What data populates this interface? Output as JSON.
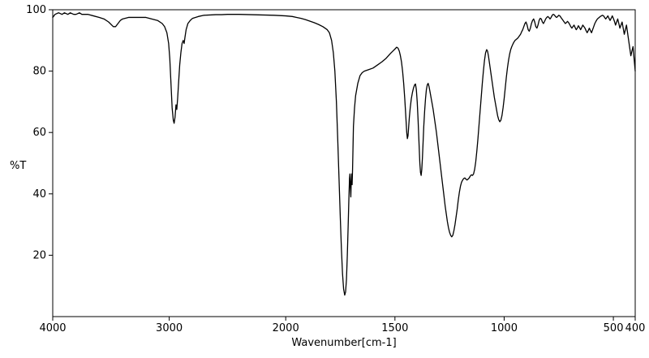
{
  "chart_data": {
    "type": "line",
    "xlabel": "Wavenumber[cm-1]",
    "ylabel": "%T",
    "line_color": "#000000",
    "x_axis": {
      "max": 4000,
      "min": 400,
      "reversed": true,
      "scale_break_at": 2000,
      "break_fraction": 0.4,
      "major_ticks": [
        4000,
        3000,
        2000,
        1500,
        1000,
        500,
        400
      ]
    },
    "y_axis": {
      "min": 0,
      "max": 100,
      "tick_labels": [
        20,
        40,
        60,
        80,
        100
      ]
    },
    "points": [
      [
        4000,
        97.5
      ],
      [
        3980,
        98.5
      ],
      [
        3950,
        99
      ],
      [
        3920,
        98.5
      ],
      [
        3900,
        99
      ],
      [
        3870,
        98.5
      ],
      [
        3850,
        99
      ],
      [
        3820,
        98.5
      ],
      [
        3800,
        98.5
      ],
      [
        3770,
        99
      ],
      [
        3750,
        98.5
      ],
      [
        3700,
        98.5
      ],
      [
        3650,
        98
      ],
      [
        3600,
        97.5
      ],
      [
        3560,
        97
      ],
      [
        3520,
        96
      ],
      [
        3480,
        94.5
      ],
      [
        3460,
        94.5
      ],
      [
        3440,
        95.5
      ],
      [
        3420,
        96.5
      ],
      [
        3400,
        97
      ],
      [
        3350,
        97.5
      ],
      [
        3300,
        97.5
      ],
      [
        3250,
        97.5
      ],
      [
        3200,
        97.5
      ],
      [
        3150,
        97
      ],
      [
        3100,
        96.5
      ],
      [
        3060,
        95.5
      ],
      [
        3040,
        94.5
      ],
      [
        3020,
        92.5
      ],
      [
        3005,
        89
      ],
      [
        2995,
        84
      ],
      [
        2985,
        76
      ],
      [
        2975,
        68
      ],
      [
        2965,
        64
      ],
      [
        2958,
        63
      ],
      [
        2950,
        65
      ],
      [
        2942,
        69
      ],
      [
        2935,
        67.5
      ],
      [
        2928,
        71
      ],
      [
        2920,
        76
      ],
      [
        2910,
        82
      ],
      [
        2900,
        86
      ],
      [
        2890,
        89
      ],
      [
        2880,
        90
      ],
      [
        2872,
        89
      ],
      [
        2865,
        91
      ],
      [
        2855,
        93.5
      ],
      [
        2840,
        95.5
      ],
      [
        2820,
        96.5
      ],
      [
        2800,
        97.2
      ],
      [
        2750,
        97.8
      ],
      [
        2700,
        98.2
      ],
      [
        2650,
        98.3
      ],
      [
        2600,
        98.4
      ],
      [
        2550,
        98.4
      ],
      [
        2500,
        98.5
      ],
      [
        2400,
        98.5
      ],
      [
        2300,
        98.4
      ],
      [
        2200,
        98.3
      ],
      [
        2100,
        98.2
      ],
      [
        2000,
        98
      ],
      [
        1970,
        97.8
      ],
      [
        1950,
        97.5
      ],
      [
        1930,
        97.2
      ],
      [
        1910,
        96.8
      ],
      [
        1890,
        96.3
      ],
      [
        1870,
        95.8
      ],
      [
        1850,
        95.2
      ],
      [
        1830,
        94.5
      ],
      [
        1810,
        93.5
      ],
      [
        1800,
        92.5
      ],
      [
        1790,
        90
      ],
      [
        1782,
        86
      ],
      [
        1775,
        80
      ],
      [
        1768,
        70
      ],
      [
        1762,
        58
      ],
      [
        1756,
        45
      ],
      [
        1750,
        32
      ],
      [
        1745,
        22
      ],
      [
        1740,
        14
      ],
      [
        1735,
        9
      ],
      [
        1730,
        7
      ],
      [
        1726,
        8
      ],
      [
        1722,
        12
      ],
      [
        1718,
        20
      ],
      [
        1714,
        30
      ],
      [
        1711,
        38
      ],
      [
        1708,
        45
      ],
      [
        1706,
        46.5
      ],
      [
        1704,
        42
      ],
      [
        1702,
        39
      ],
      [
        1700,
        44
      ],
      [
        1698,
        46.5
      ],
      [
        1696,
        43
      ],
      [
        1694,
        48
      ],
      [
        1692,
        55
      ],
      [
        1690,
        62
      ],
      [
        1685,
        68
      ],
      [
        1680,
        72
      ],
      [
        1670,
        76
      ],
      [
        1660,
        78.5
      ],
      [
        1650,
        79.5
      ],
      [
        1640,
        80
      ],
      [
        1620,
        80.5
      ],
      [
        1600,
        81
      ],
      [
        1580,
        82
      ],
      [
        1560,
        83
      ],
      [
        1540,
        84.2
      ],
      [
        1520,
        85.8
      ],
      [
        1510,
        86.5
      ],
      [
        1500,
        87.2
      ],
      [
        1492,
        87.8
      ],
      [
        1486,
        87.5
      ],
      [
        1480,
        86.5
      ],
      [
        1475,
        85
      ],
      [
        1470,
        83
      ],
      [
        1465,
        80
      ],
      [
        1460,
        76
      ],
      [
        1455,
        71
      ],
      [
        1450,
        65
      ],
      [
        1446,
        60
      ],
      [
        1443,
        58
      ],
      [
        1440,
        59
      ],
      [
        1437,
        62
      ],
      [
        1434,
        65
      ],
      [
        1430,
        68
      ],
      [
        1425,
        71
      ],
      [
        1420,
        73
      ],
      [
        1415,
        74.5
      ],
      [
        1410,
        75.5
      ],
      [
        1406,
        75.8
      ],
      [
        1402,
        74
      ],
      [
        1398,
        70
      ],
      [
        1394,
        64
      ],
      [
        1390,
        57
      ],
      [
        1386,
        50
      ],
      [
        1383,
        47
      ],
      [
        1380,
        46
      ],
      [
        1377,
        48
      ],
      [
        1374,
        52
      ],
      [
        1371,
        57
      ],
      [
        1368,
        62
      ],
      [
        1364,
        67
      ],
      [
        1360,
        71
      ],
      [
        1356,
        74
      ],
      [
        1352,
        75.5
      ],
      [
        1348,
        76
      ],
      [
        1344,
        75
      ],
      [
        1340,
        73.5
      ],
      [
        1335,
        71.5
      ],
      [
        1330,
        69.5
      ],
      [
        1325,
        67.5
      ],
      [
        1320,
        65
      ],
      [
        1315,
        62.5
      ],
      [
        1310,
        60
      ],
      [
        1305,
        57
      ],
      [
        1300,
        54
      ],
      [
        1295,
        51
      ],
      [
        1290,
        48
      ],
      [
        1285,
        45
      ],
      [
        1280,
        42
      ],
      [
        1275,
        39
      ],
      [
        1270,
        36
      ],
      [
        1265,
        33.5
      ],
      [
        1260,
        31
      ],
      [
        1255,
        29
      ],
      [
        1250,
        27.5
      ],
      [
        1245,
        26.5
      ],
      [
        1240,
        26
      ],
      [
        1235,
        26.5
      ],
      [
        1230,
        28
      ],
      [
        1225,
        30
      ],
      [
        1220,
        32.5
      ],
      [
        1215,
        35
      ],
      [
        1210,
        38
      ],
      [
        1205,
        40.5
      ],
      [
        1200,
        42.5
      ],
      [
        1195,
        43.8
      ],
      [
        1190,
        44.5
      ],
      [
        1185,
        45
      ],
      [
        1180,
        45.2
      ],
      [
        1175,
        44.8
      ],
      [
        1170,
        44.5
      ],
      [
        1165,
        44.8
      ],
      [
        1160,
        45.2
      ],
      [
        1155,
        45.8
      ],
      [
        1150,
        46.2
      ],
      [
        1145,
        46
      ],
      [
        1140,
        46.5
      ],
      [
        1135,
        48
      ],
      [
        1130,
        50.5
      ],
      [
        1125,
        54
      ],
      [
        1120,
        58
      ],
      [
        1115,
        62.5
      ],
      [
        1110,
        67
      ],
      [
        1105,
        71.5
      ],
      [
        1100,
        76
      ],
      [
        1095,
        80
      ],
      [
        1090,
        83.5
      ],
      [
        1085,
        86
      ],
      [
        1080,
        87
      ],
      [
        1076,
        86.5
      ],
      [
        1072,
        85
      ],
      [
        1068,
        83
      ],
      [
        1064,
        81
      ],
      [
        1060,
        79
      ],
      [
        1055,
        76.5
      ],
      [
        1050,
        74
      ],
      [
        1045,
        71.5
      ],
      [
        1040,
        69.5
      ],
      [
        1035,
        67.5
      ],
      [
        1030,
        65.5
      ],
      [
        1025,
        64.2
      ],
      [
        1020,
        63.5
      ],
      [
        1015,
        64
      ],
      [
        1010,
        65.5
      ],
      [
        1005,
        68
      ],
      [
        1000,
        71
      ],
      [
        995,
        74.5
      ],
      [
        990,
        78
      ],
      [
        985,
        81
      ],
      [
        980,
        83.5
      ],
      [
        975,
        85.5
      ],
      [
        970,
        87
      ],
      [
        965,
        88
      ],
      [
        960,
        88.8
      ],
      [
        955,
        89.5
      ],
      [
        950,
        90
      ],
      [
        945,
        90.3
      ],
      [
        940,
        90.6
      ],
      [
        935,
        91
      ],
      [
        930,
        91.5
      ],
      [
        925,
        92
      ],
      [
        920,
        92.8
      ],
      [
        915,
        93.5
      ],
      [
        910,
        94.5
      ],
      [
        905,
        95.5
      ],
      [
        900,
        96
      ],
      [
        895,
        95
      ],
      [
        890,
        93.5
      ],
      [
        885,
        93
      ],
      [
        880,
        94
      ],
      [
        875,
        95.5
      ],
      [
        870,
        96.5
      ],
      [
        865,
        97
      ],
      [
        860,
        96
      ],
      [
        855,
        94.5
      ],
      [
        850,
        94
      ],
      [
        845,
        95
      ],
      [
        840,
        96.5
      ],
      [
        835,
        97.2
      ],
      [
        830,
        97
      ],
      [
        825,
        96
      ],
      [
        820,
        95.5
      ],
      [
        815,
        96.2
      ],
      [
        810,
        97
      ],
      [
        805,
        97.5
      ],
      [
        800,
        97.8
      ],
      [
        795,
        97.5
      ],
      [
        790,
        97
      ],
      [
        785,
        97.5
      ],
      [
        780,
        98.2
      ],
      [
        775,
        98.5
      ],
      [
        770,
        98.3
      ],
      [
        765,
        97.8
      ],
      [
        760,
        97.5
      ],
      [
        755,
        97.8
      ],
      [
        750,
        98.2
      ],
      [
        745,
        98
      ],
      [
        740,
        97.5
      ],
      [
        735,
        97
      ],
      [
        730,
        96.5
      ],
      [
        725,
        96
      ],
      [
        720,
        95.5
      ],
      [
        715,
        95.8
      ],
      [
        710,
        96.2
      ],
      [
        705,
        95.8
      ],
      [
        700,
        95.2
      ],
      [
        695,
        94.5
      ],
      [
        690,
        94
      ],
      [
        685,
        94.5
      ],
      [
        680,
        95
      ],
      [
        675,
        94.2
      ],
      [
        670,
        93.5
      ],
      [
        665,
        94
      ],
      [
        660,
        94.8
      ],
      [
        655,
        94.2
      ],
      [
        650,
        93.5
      ],
      [
        645,
        94.2
      ],
      [
        640,
        95
      ],
      [
        635,
        94.5
      ],
      [
        630,
        94
      ],
      [
        625,
        93.2
      ],
      [
        620,
        92.5
      ],
      [
        615,
        93.2
      ],
      [
        610,
        94
      ],
      [
        605,
        93.2
      ],
      [
        600,
        92.5
      ],
      [
        595,
        93.5
      ],
      [
        590,
        94.5
      ],
      [
        585,
        95.5
      ],
      [
        580,
        96.2
      ],
      [
        575,
        96.8
      ],
      [
        570,
        97.2
      ],
      [
        565,
        97.5
      ],
      [
        560,
        97.8
      ],
      [
        555,
        98
      ],
      [
        550,
        98.2
      ],
      [
        545,
        98
      ],
      [
        540,
        97.5
      ],
      [
        535,
        97
      ],
      [
        530,
        97.5
      ],
      [
        525,
        98
      ],
      [
        520,
        97.2
      ],
      [
        515,
        96.5
      ],
      [
        510,
        97.2
      ],
      [
        505,
        98
      ],
      [
        500,
        97.2
      ],
      [
        495,
        96.2
      ],
      [
        490,
        95
      ],
      [
        485,
        96
      ],
      [
        480,
        97
      ],
      [
        475,
        95.5
      ],
      [
        470,
        94
      ],
      [
        465,
        95
      ],
      [
        460,
        96
      ],
      [
        455,
        94
      ],
      [
        450,
        92
      ],
      [
        445,
        93.5
      ],
      [
        440,
        95
      ],
      [
        435,
        92.5
      ],
      [
        430,
        90
      ],
      [
        425,
        87.5
      ],
      [
        420,
        85
      ],
      [
        415,
        86.5
      ],
      [
        410,
        88
      ],
      [
        405,
        84
      ],
      [
        400,
        80
      ]
    ]
  }
}
